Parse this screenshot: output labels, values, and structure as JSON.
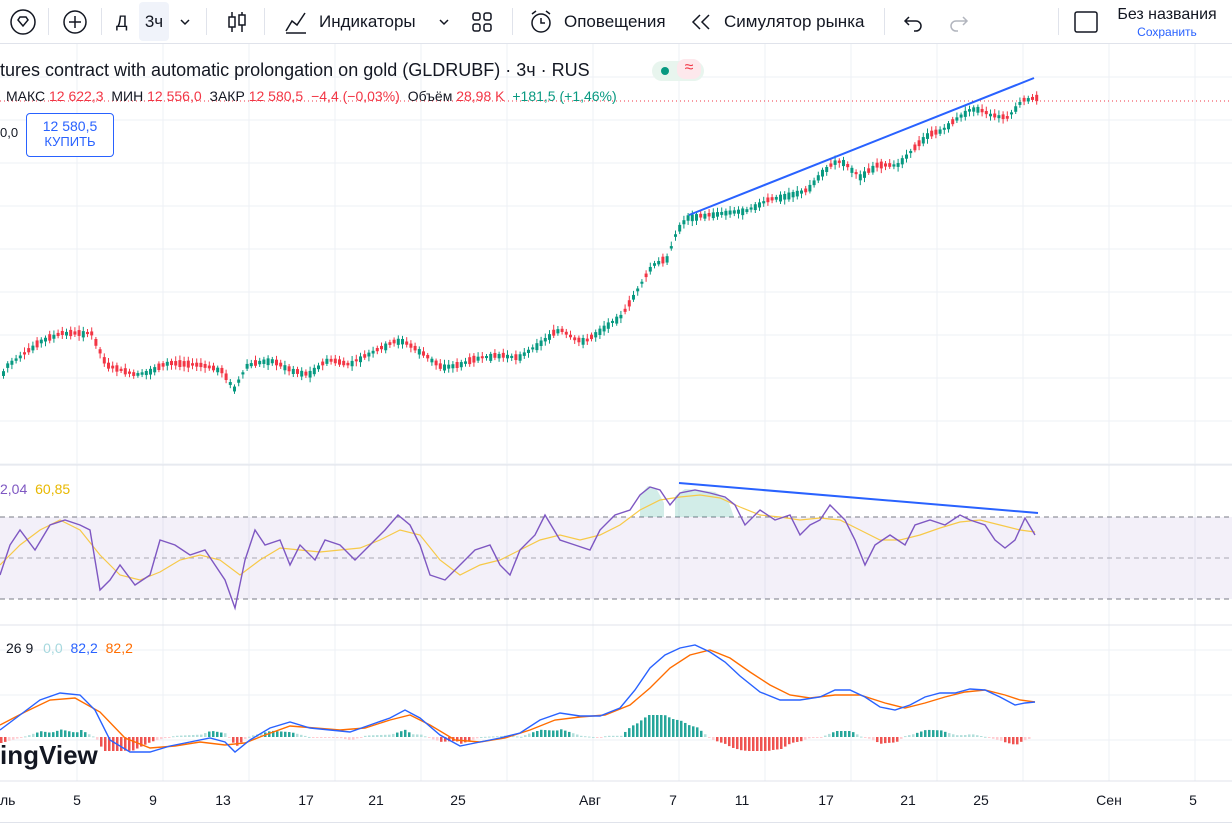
{
  "toolbar": {
    "interval_d": "Д",
    "interval_3h": "3ч",
    "indicators_label": "Индикаторы",
    "alerts_label": "Оповещения",
    "simulator_label": "Симулятор рынка",
    "layout_name": "Без названия",
    "saved_label": "Сохранить"
  },
  "legend": {
    "title": "tures contract with automatic prolongation on gold (GLDRUBF) · 3ч · RUS",
    "high_label": "МАКС",
    "high_value": "12 622,3",
    "low_label": "МИН",
    "low_value": "12 556,0",
    "close_label": "ЗАКР",
    "close_value": "12 580,5",
    "change": "−4,4 (−0,03%)",
    "volume_label": "Объём",
    "volume_value": "28,98 K",
    "volume_change": "+181,5 (+1,46%)",
    "left_cut": "0,0"
  },
  "buy": {
    "price": "12 580,5",
    "label": "КУПИТЬ"
  },
  "rsi": {
    "value1": "2,04",
    "value2": "60,85"
  },
  "macd": {
    "params": "26 9",
    "hist": "0,0",
    "macd": "82,2",
    "signal": "82,2"
  },
  "watermark": "ingView",
  "x_axis": [
    "оль",
    "5",
    "9",
    "13",
    "17",
    "21",
    "25",
    "Авг",
    "7",
    "11",
    "17",
    "21",
    "25",
    "Сен",
    "5"
  ],
  "colors": {
    "up": "#089981",
    "down": "#f23645",
    "trend": "#2962ff",
    "rsi": "#7e57c2",
    "rsi_ma": "#f7c948",
    "macd": "#2962ff",
    "signal": "#ff6d00"
  }
}
